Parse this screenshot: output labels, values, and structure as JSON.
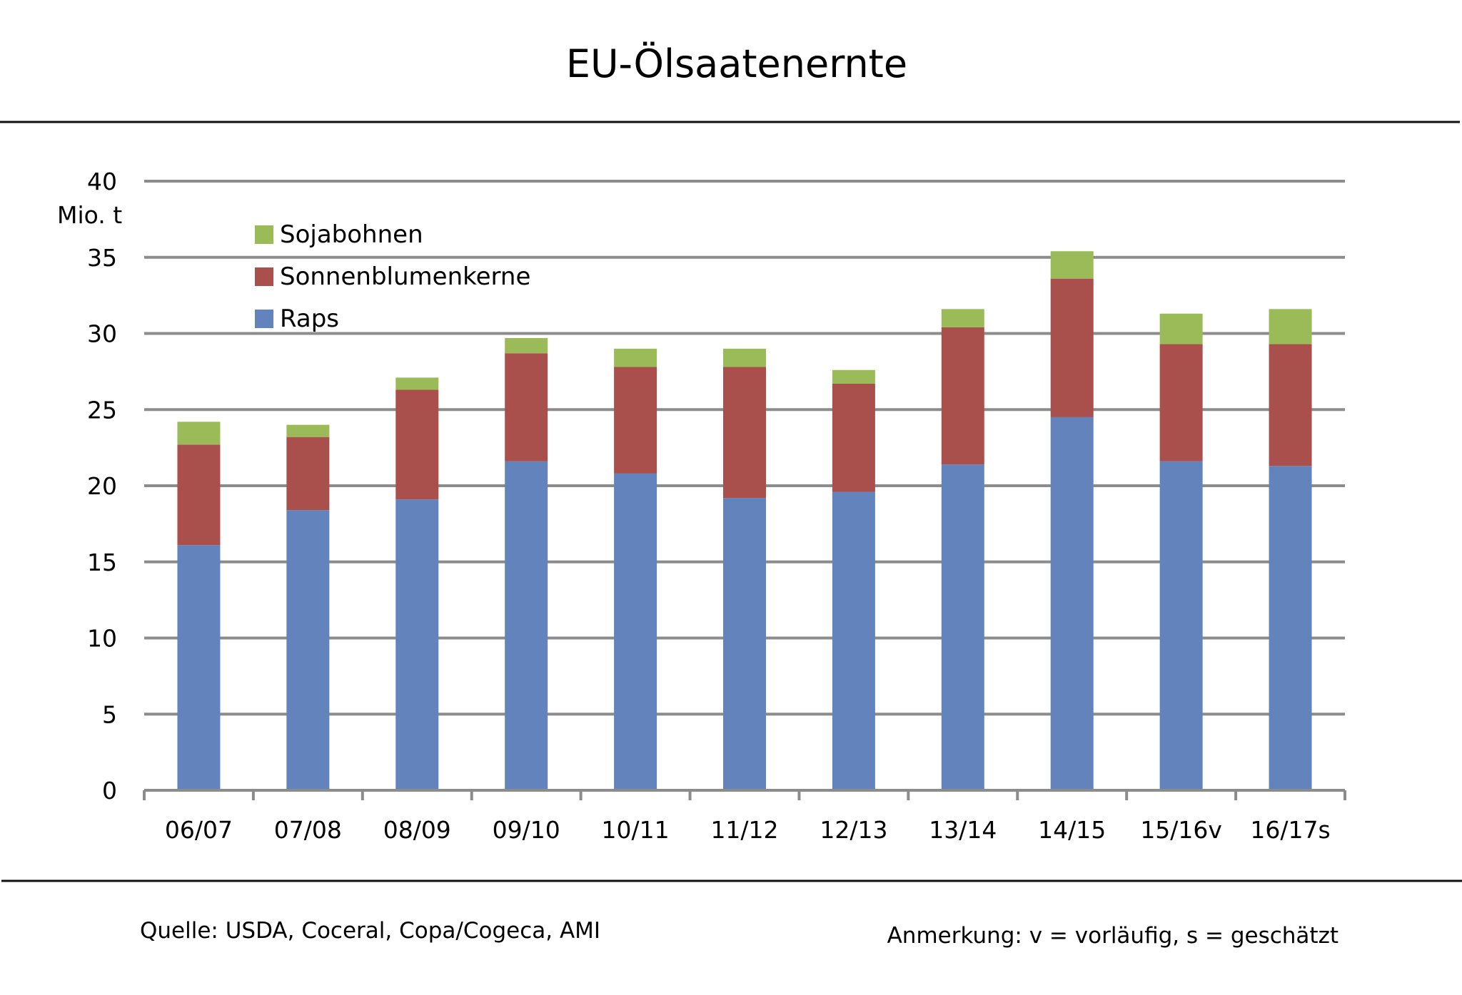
{
  "chart_data": {
    "type": "bar",
    "stacked": true,
    "title": "EU-Ölsaatenernte",
    "ylabel": "Mio. t",
    "xlabel": "",
    "ylim": [
      0,
      40
    ],
    "yticks": [
      0,
      5,
      10,
      15,
      20,
      25,
      30,
      35,
      40
    ],
    "grid": true,
    "legend_position": "top-left",
    "categories": [
      "06/07",
      "07/08",
      "08/09",
      "09/10",
      "10/11",
      "11/12",
      "12/13",
      "13/14",
      "14/15",
      "15/16v",
      "16/17s"
    ],
    "series": [
      {
        "name": "Raps",
        "color": "#6383BC",
        "values": [
          16.1,
          18.4,
          19.1,
          21.6,
          20.8,
          19.2,
          19.6,
          21.4,
          24.5,
          21.6,
          21.3
        ]
      },
      {
        "name": "Sonnenblumenkerne",
        "color": "#A9504D",
        "values": [
          6.6,
          4.8,
          7.2,
          7.1,
          7.0,
          8.6,
          7.1,
          9.0,
          9.1,
          7.7,
          8.0
        ]
      },
      {
        "name": "Sojabohnen",
        "color": "#9BBB59",
        "values": [
          1.5,
          0.8,
          0.8,
          1.0,
          1.2,
          1.2,
          0.9,
          1.2,
          1.8,
          2.0,
          2.3
        ]
      }
    ],
    "legend_order": [
      "Sojabohnen",
      "Sonnenblumenkerne",
      "Raps"
    ]
  },
  "footer": {
    "source": "Quelle: USDA, Coceral, Copa/Cogeca, AMI",
    "note": "Anmerkung: v = vorläufig, s = geschätzt"
  }
}
